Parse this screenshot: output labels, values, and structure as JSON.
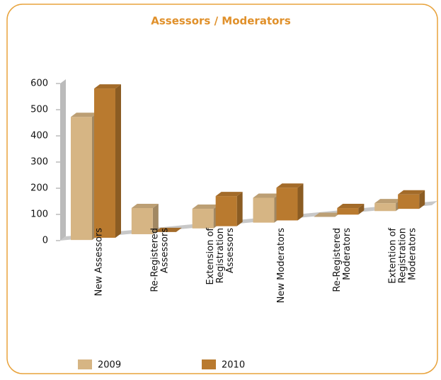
{
  "chart_data": {
    "type": "bar3d",
    "title": "Assessors / Moderators",
    "categories": [
      [
        "New Assessors"
      ],
      [
        "Re-Registered",
        "Assessors"
      ],
      [
        "Extension of",
        "Registration",
        "Assessors"
      ],
      [
        "New Moderators"
      ],
      [
        "Re-Registered",
        "Moderators"
      ],
      [
        "Extention of",
        "Registration",
        "Moderators"
      ]
    ],
    "series": [
      {
        "name": "2009",
        "color": "#d6b584",
        "values": [
          470,
          100,
          75,
          95,
          0,
          30
        ]
      },
      {
        "name": "2010",
        "color": "#b97a2f",
        "values": [
          570,
          0,
          115,
          125,
          25,
          55
        ]
      }
    ],
    "ylim": [
      0,
      600
    ],
    "yticks": [
      0,
      100,
      200,
      300,
      400,
      500,
      600
    ],
    "legend": "bottom"
  }
}
